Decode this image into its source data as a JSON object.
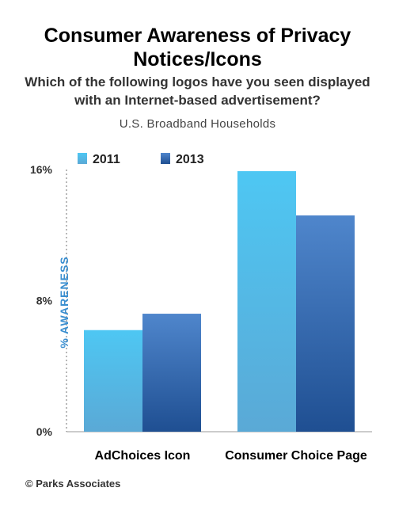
{
  "header": {
    "title_line1": "Consumer Awareness of Privacy",
    "title_line2": "Notices/Icons",
    "subtitle_line1": "Which of the following logos have you seen displayed",
    "subtitle_line2": "with an Internet-based advertisement?",
    "population": "U.S. Broadband Households"
  },
  "footer": {
    "credit": "© Parks Associates"
  },
  "colors": {
    "series_2011": "#4cc3ef",
    "series_2013": "#2f66b0",
    "axis_label": "#3b8fd0"
  },
  "chart_data": {
    "type": "bar",
    "categories": [
      "AdChoices Icon",
      "Consumer Choice Page"
    ],
    "series": [
      {
        "name": "2011",
        "values": [
          6.2,
          15.9
        ]
      },
      {
        "name": "2013",
        "values": [
          7.2,
          13.2
        ]
      }
    ],
    "ylabel": "% AWARENESS",
    "ylim": [
      0,
      16
    ],
    "yticks": [
      "0%",
      "8%",
      "16%"
    ],
    "grid": false,
    "legend": "top-left"
  }
}
